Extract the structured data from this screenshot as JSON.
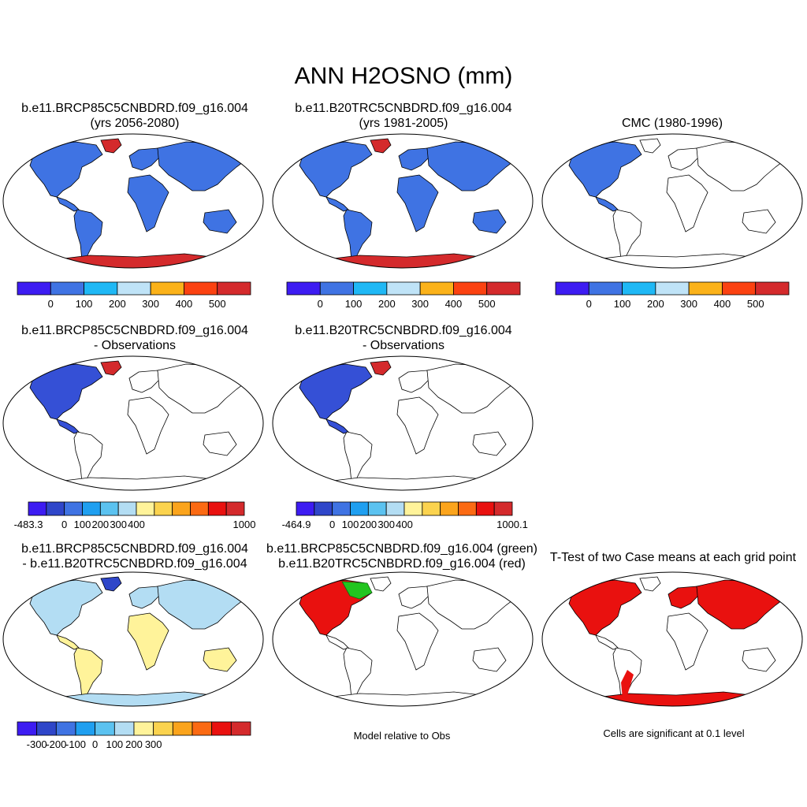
{
  "figure": {
    "title": "ANN H2OSNO (mm)"
  },
  "chart_data": [
    {
      "type": "map",
      "title_lines": [
        "b.e11.BRCP85C5CNBDRD.f09_g16.004",
        "(yrs 2056-2080)"
      ],
      "colorbar": {
        "ticks": [
          "0",
          "100",
          "200",
          "300",
          "400",
          "500"
        ],
        "colors": [
          "#3d1cf2",
          "#3f73e3",
          "#1fb8f5",
          "#bfe3f7",
          "#fbb21a",
          "#fb4211",
          "#d42a2c"
        ]
      }
    },
    {
      "type": "map",
      "title_lines": [
        "b.e11.B20TRC5CNBDRD.f09_g16.004",
        "(yrs 1981-2005)"
      ],
      "colorbar": {
        "ticks": [
          "0",
          "100",
          "200",
          "300",
          "400",
          "500"
        ],
        "colors": [
          "#3d1cf2",
          "#3f73e3",
          "#1fb8f5",
          "#bfe3f7",
          "#fbb21a",
          "#fb4211",
          "#d42a2c"
        ]
      }
    },
    {
      "type": "map",
      "title_lines": [
        "CMC (1980-1996)"
      ],
      "colorbar": {
        "ticks": [
          "0",
          "100",
          "200",
          "300",
          "400",
          "500"
        ],
        "colors": [
          "#3d1cf2",
          "#3f73e3",
          "#1fb8f5",
          "#bfe3f7",
          "#fbb21a",
          "#fb4211",
          "#d42a2c"
        ]
      }
    },
    {
      "type": "map",
      "title_lines": [
        "b.e11.BRCP85C5CNBDRD.f09_g16.004",
        "- Observations"
      ],
      "colorbar": {
        "ticks": [
          "-483.3",
          "0",
          "100",
          "200",
          "300",
          "400",
          "1000"
        ],
        "colors": [
          "#3d1cf2",
          "#2f46c9",
          "#3f73e3",
          "#1f9ff0",
          "#5bc2f0",
          "#b3ddf3",
          "#fff39a",
          "#fbd34e",
          "#fba41c",
          "#fb6a13",
          "#e9110f",
          "#d42a2c"
        ]
      }
    },
    {
      "type": "map",
      "title_lines": [
        "b.e11.B20TRC5CNBDRD.f09_g16.004",
        "- Observations"
      ],
      "colorbar": {
        "ticks": [
          "-464.9",
          "0",
          "100",
          "200",
          "300",
          "400",
          "1000.1"
        ],
        "colors": [
          "#3d1cf2",
          "#2f46c9",
          "#3f73e3",
          "#1f9ff0",
          "#5bc2f0",
          "#b3ddf3",
          "#fff39a",
          "#fbd34e",
          "#fba41c",
          "#fb6a13",
          "#e9110f",
          "#d42a2c"
        ]
      }
    },
    {
      "type": "map",
      "title_lines": [
        "b.e11.BRCP85C5CNBDRD.f09_g16.004",
        "- b.e11.B20TRC5CNBDRD.f09_g16.004"
      ],
      "colorbar": {
        "ticks": [
          "-300",
          "-200",
          "-100",
          "0",
          "100",
          "200",
          "300"
        ],
        "colors": [
          "#3d1cf2",
          "#2f46c9",
          "#3f73e3",
          "#1f9ff0",
          "#5bc2f0",
          "#b3ddf3",
          "#fff39a",
          "#fbd34e",
          "#fba41c",
          "#fb6a13",
          "#e9110f",
          "#d42a2c"
        ]
      }
    },
    {
      "type": "map",
      "title_lines": [
        "b.e11.BRCP85C5CNBDRD.f09_g16.004 (green)",
        "b.e11.B20TRC5CNBDRD.f09_g16.004 (red)"
      ],
      "caption": "Model relative to Obs"
    },
    {
      "type": "map",
      "title_lines": [
        "T-Test of two Case means at each grid point"
      ],
      "caption": "Cells are significant at 0.1 level"
    }
  ]
}
